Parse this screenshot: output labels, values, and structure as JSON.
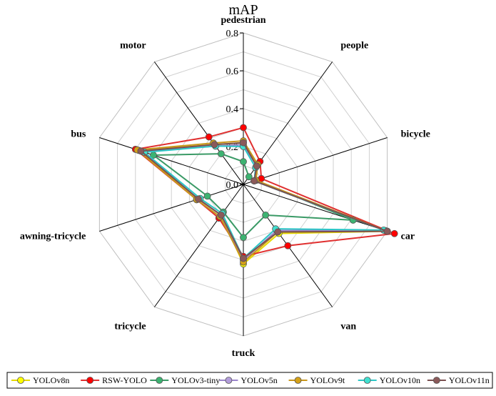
{
  "chart_data": {
    "type": "radar",
    "title": "mAP",
    "axes": [
      "pedestrian",
      "people",
      "bicycle",
      "car",
      "van",
      "truck",
      "tricycle",
      "awning-tricycle",
      "bus",
      "motor"
    ],
    "rlim": [
      0,
      0.8
    ],
    "ticks": [
      "0.0",
      "0.2",
      "0.4",
      "0.6",
      "0.8"
    ],
    "tick_values": [
      0,
      0.2,
      0.4,
      0.6,
      0.8
    ],
    "grid": true,
    "legend_position": "bottom",
    "series": [
      {
        "name": "YOLOv8n",
        "color": "#ffff00",
        "line": "#e6d800",
        "values": [
          0.22,
          0.13,
          0.06,
          0.8,
          0.32,
          0.42,
          0.2,
          0.25,
          0.58,
          0.26
        ]
      },
      {
        "name": "RSW-YOLO",
        "color": "#ff0000",
        "line": "#e03030",
        "values": [
          0.3,
          0.15,
          0.1,
          0.84,
          0.4,
          0.38,
          0.22,
          0.26,
          0.6,
          0.31
        ]
      },
      {
        "name": "YOLOv3-tiny",
        "color": "#3cb371",
        "line": "#3a9a66",
        "values": [
          0.12,
          0.05,
          0.07,
          0.61,
          0.2,
          0.28,
          0.18,
          0.2,
          0.5,
          0.2
        ]
      },
      {
        "name": "YOLOv5n",
        "color": "#b39ddb",
        "line": "#9b85cc",
        "values": [
          0.21,
          0.12,
          0.06,
          0.79,
          0.3,
          0.4,
          0.2,
          0.25,
          0.56,
          0.25
        ]
      },
      {
        "name": "YOLOv9t",
        "color": "#d4a017",
        "line": "#c8961a",
        "values": [
          0.23,
          0.13,
          0.07,
          0.8,
          0.31,
          0.41,
          0.21,
          0.26,
          0.59,
          0.27
        ]
      },
      {
        "name": "YOLOv10n",
        "color": "#40e0d0",
        "line": "#2cc6c6",
        "values": [
          0.2,
          0.11,
          0.06,
          0.78,
          0.29,
          0.39,
          0.19,
          0.24,
          0.55,
          0.25
        ]
      },
      {
        "name": "YOLOv11n",
        "color": "#8b5a5a",
        "line": "#7a5050",
        "values": [
          0.22,
          0.12,
          0.06,
          0.8,
          0.31,
          0.39,
          0.2,
          0.25,
          0.57,
          0.26
        ]
      }
    ]
  }
}
